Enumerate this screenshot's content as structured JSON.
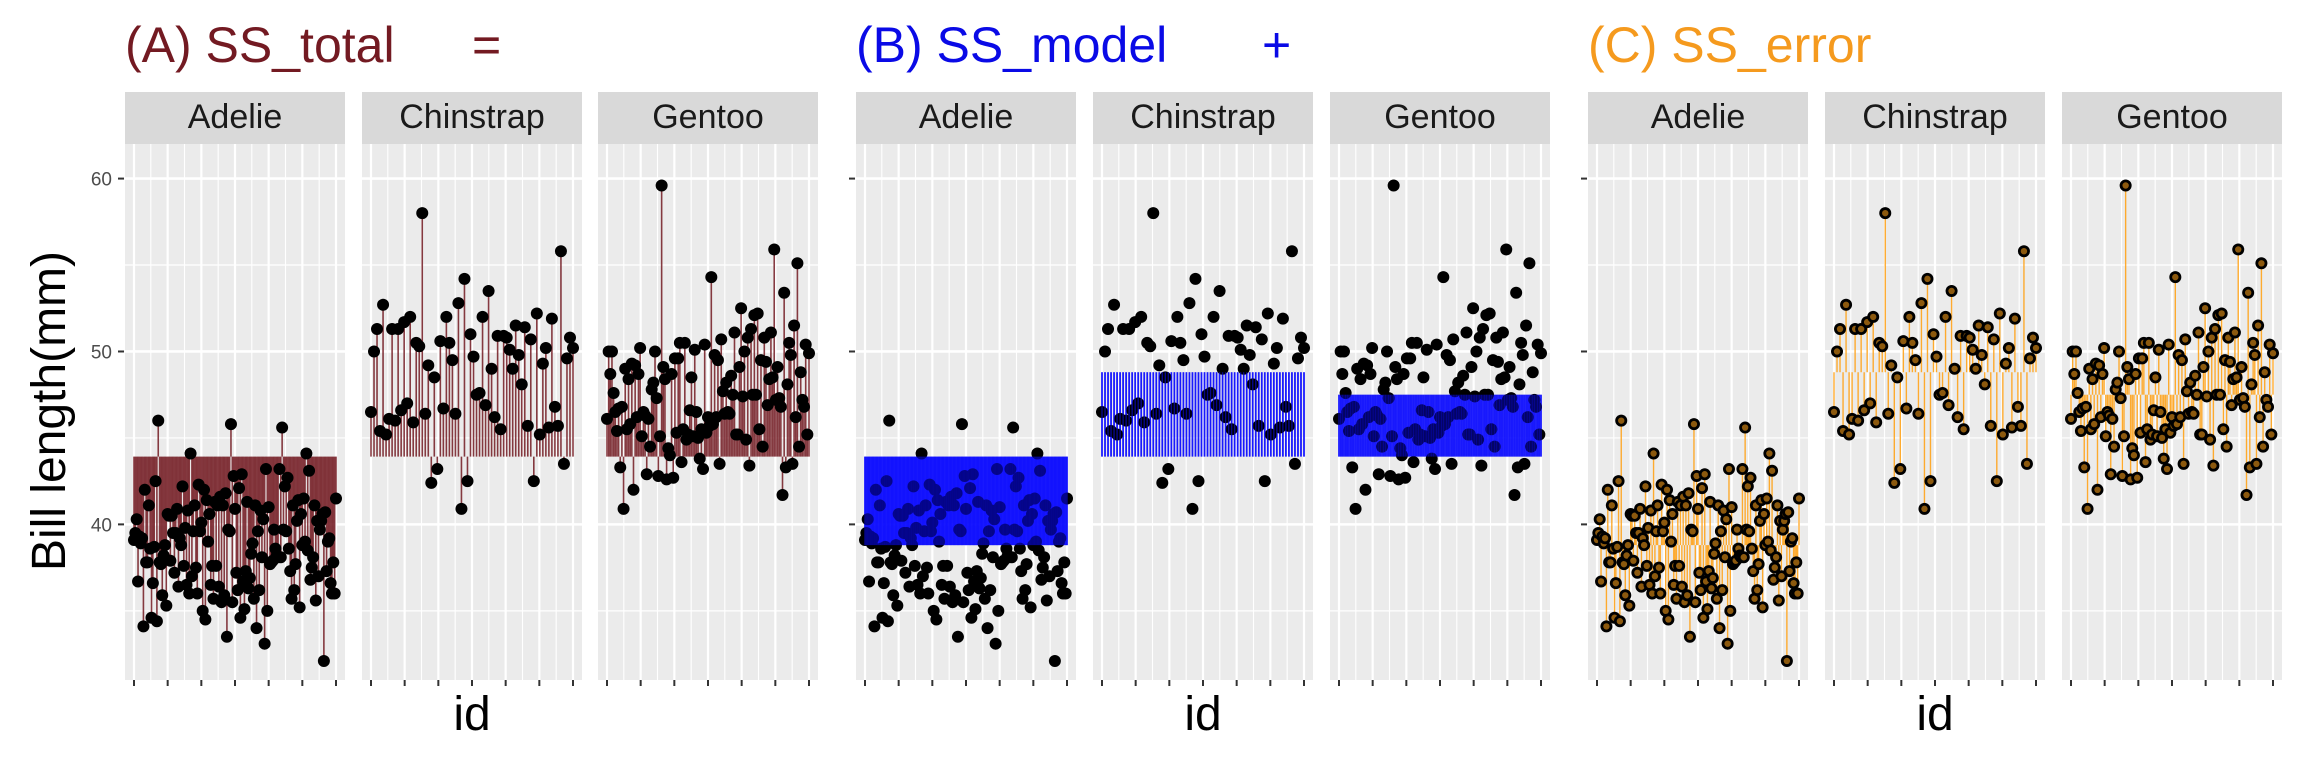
{
  "chart_data": {
    "type": "scatter",
    "description_labels": {
      "ylabel": "Bill length(mm)",
      "xlabel": "id"
    },
    "y_axis": {
      "range": [
        31,
        62
      ],
      "ticks": [
        40,
        50,
        60
      ],
      "tick_labels": [
        "40",
        "50",
        "60"
      ]
    },
    "grand_mean": 43.92,
    "panel_order": [
      "Adelie",
      "Chinstrap",
      "Gentoo"
    ],
    "group_means": {
      "Adelie": 38.8,
      "Chinstrap": 48.8,
      "Gentoo": 47.5
    },
    "groups": [
      {
        "name": "Adelie",
        "y": [
          39.1,
          39.5,
          40.3,
          36.7,
          39.3,
          38.9,
          39.2,
          34.1,
          42.0,
          37.8,
          37.8,
          41.1,
          38.6,
          34.6,
          36.6,
          38.7,
          42.5,
          34.4,
          46.0,
          37.8,
          37.7,
          35.9,
          38.2,
          38.8,
          35.3,
          40.6,
          40.5,
          37.9,
          40.5,
          39.5,
          37.2,
          39.5,
          40.9,
          36.4,
          39.2,
          38.8,
          42.2,
          37.6,
          39.8,
          36.5,
          40.8,
          36.0,
          44.1,
          37.0,
          39.6,
          41.1,
          37.5,
          36.0,
          42.3,
          39.6,
          40.1,
          35.0,
          42.0,
          34.5,
          41.4,
          39.0,
          40.6,
          36.5,
          37.6,
          35.7,
          41.3,
          37.6,
          41.1,
          36.4,
          41.6,
          35.5,
          41.1,
          35.9,
          41.8,
          33.5,
          39.7,
          39.6,
          45.8,
          35.5,
          42.8,
          40.9,
          37.2,
          36.2,
          42.1,
          34.6,
          42.9,
          36.7,
          35.1,
          37.3,
          41.3,
          36.3,
          36.9,
          38.3,
          38.9,
          35.7,
          41.1,
          34.0,
          39.6,
          36.2,
          40.8,
          38.1,
          40.3,
          33.1,
          43.2,
          35.0,
          41.0,
          37.7,
          37.8,
          37.9,
          39.7,
          38.6,
          38.2,
          38.1,
          43.2,
          38.1,
          45.6,
          39.7,
          42.2,
          39.6,
          42.7,
          38.6,
          37.3,
          35.7,
          41.1,
          36.2,
          37.7,
          40.2,
          41.4,
          35.2,
          40.6,
          38.8,
          41.5,
          39.0,
          44.1,
          38.5,
          43.1,
          36.8,
          37.5,
          38.1,
          41.1,
          35.6,
          40.2,
          37.0,
          39.7,
          40.2,
          40.6,
          32.1,
          40.7,
          37.3,
          39.0,
          39.2,
          36.6,
          36.0,
          37.8,
          36.0,
          41.5
        ]
      },
      {
        "name": "Chinstrap",
        "y": [
          46.5,
          50.0,
          51.3,
          45.4,
          52.7,
          45.2,
          46.1,
          51.3,
          46.0,
          51.3,
          46.6,
          51.7,
          47.0,
          52.0,
          45.9,
          50.5,
          50.3,
          58.0,
          46.4,
          49.2,
          42.4,
          48.5,
          43.2,
          50.6,
          46.7,
          52.0,
          50.5,
          49.5,
          46.4,
          52.8,
          40.9,
          54.2,
          42.5,
          51.0,
          49.7,
          47.5,
          47.6,
          52.0,
          46.9,
          53.5,
          49.0,
          46.2,
          50.9,
          45.5,
          50.9,
          50.8,
          50.1,
          49.0,
          51.5,
          49.8,
          48.1,
          51.4,
          45.7,
          50.7,
          42.5,
          52.2,
          45.2,
          49.3,
          50.2,
          45.6,
          51.9,
          46.8,
          45.7,
          55.8,
          43.5,
          49.6,
          50.8,
          50.2
        ]
      },
      {
        "name": "Gentoo",
        "y": [
          46.1,
          50.0,
          48.7,
          50.0,
          47.6,
          46.5,
          45.4,
          46.7,
          43.3,
          46.8,
          40.9,
          49.0,
          45.5,
          48.4,
          45.8,
          49.3,
          42.0,
          49.2,
          46.2,
          48.7,
          50.2,
          45.1,
          46.5,
          46.3,
          42.9,
          46.1,
          44.5,
          47.8,
          48.2,
          50.0,
          47.3,
          42.8,
          45.1,
          59.6,
          49.1,
          48.4,
          42.6,
          44.4,
          44.0,
          48.7,
          42.7,
          49.6,
          45.3,
          49.6,
          50.5,
          43.6,
          45.5,
          50.5,
          44.9,
          45.2,
          46.6,
          48.5,
          45.1,
          50.1,
          46.5,
          45.0,
          43.8,
          45.5,
          43.2,
          50.4,
          45.3,
          46.2,
          45.7,
          54.3,
          45.8,
          49.8,
          46.2,
          49.5,
          43.5,
          50.7,
          47.7,
          46.4,
          48.2,
          46.5,
          46.4,
          48.6,
          47.5,
          51.1,
          45.2,
          45.2,
          49.1,
          52.5,
          47.4,
          50.0,
          44.9,
          50.8,
          43.4,
          51.3,
          47.5,
          52.1,
          47.5,
          52.2,
          45.5,
          49.5,
          44.5,
          50.8,
          49.4,
          46.9,
          48.4,
          51.1,
          48.5,
          55.9,
          47.2,
          49.1,
          47.3,
          46.8,
          41.7,
          53.4,
          43.3,
          48.1,
          50.5,
          49.8,
          43.5,
          51.5,
          46.2,
          55.1,
          44.5,
          48.8,
          47.2,
          46.8,
          50.4,
          45.2,
          49.9
        ]
      }
    ],
    "panels": [
      {
        "id": "A",
        "title_parts": [
          "(A) SS_total",
          "="
        ],
        "title_color": "#731a22",
        "segment_color": "#731a22",
        "mode": "total",
        "bars": true,
        "bar_color": "#731a22"
      },
      {
        "id": "B",
        "title_parts": [
          "(B)  SS_model",
          "+"
        ],
        "title_color": "#0a0ae6",
        "segment_color": "#0a0aff",
        "mode": "model",
        "bars": true,
        "bar_color": "#0a0aff"
      },
      {
        "id": "C",
        "title_parts": [
          "(C)  SS_error",
          ""
        ],
        "title_color": "#f59a1e",
        "segment_color": "#ffa31a",
        "mode": "error",
        "bars": false,
        "bar_color": "#ffa31a"
      }
    ]
  }
}
